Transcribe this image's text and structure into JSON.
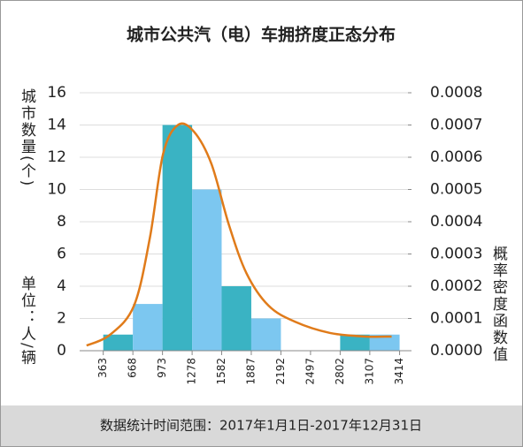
{
  "chart_data": {
    "type": "histogram",
    "title": "城市公共汽（电）车拥挤度正态分布",
    "ylabel": "城市数量(个)",
    "unit": "单位：人/辆",
    "y2label": "概率密度函数值",
    "note": "数据统计时间范围：2017年1月1日-2017年12月31日",
    "bins": [
      363,
      668,
      973,
      1278,
      1582,
      1887,
      2192,
      2497,
      2802,
      3107,
      3414
    ],
    "counts": [
      1,
      2.9,
      14,
      10,
      4,
      2,
      0,
      0,
      1,
      1
    ],
    "colors": [
      "#3ab3c3",
      "#7cc7f0"
    ],
    "xlim": [
      120,
      3500
    ],
    "ylim": [
      0,
      16
    ],
    "yticks": [
      0,
      2,
      4,
      6,
      8,
      10,
      12,
      14,
      16
    ],
    "y2lim": [
      0,
      0.0008
    ],
    "y2ticks": [
      {
        "value": 0,
        "label": "0.0000"
      },
      {
        "value": 0.0001,
        "label": "0.0001"
      },
      {
        "value": 0.0002,
        "label": "0.0002"
      },
      {
        "value": 0.0003,
        "label": "0.0003"
      },
      {
        "value": 0.0004,
        "label": "0.0004"
      },
      {
        "value": 0.0005,
        "label": "0.0005"
      },
      {
        "value": 0.0006,
        "label": "0.0006"
      },
      {
        "value": 0.0007,
        "label": "0.0007"
      },
      {
        "value": 0.0008,
        "label": "0.0008"
      }
    ],
    "grid": true,
    "series": [
      {
        "name": "概率密度函数",
        "color": "#e07b1a",
        "axis": "y2",
        "x": [
          191,
          435,
          680,
          843,
          979,
          1132,
          1295,
          1476,
          1657,
          1838,
          2064,
          2336,
          2698,
          3060,
          3332
        ],
        "values": [
          1.6e-05,
          5e-05,
          0.00014,
          0.00035,
          0.00061,
          0.0007,
          0.00068,
          0.00058,
          0.00039,
          0.00024,
          0.00014,
          9e-05,
          5.5e-05,
          4.4e-05,
          4.4e-05
        ]
      }
    ]
  }
}
